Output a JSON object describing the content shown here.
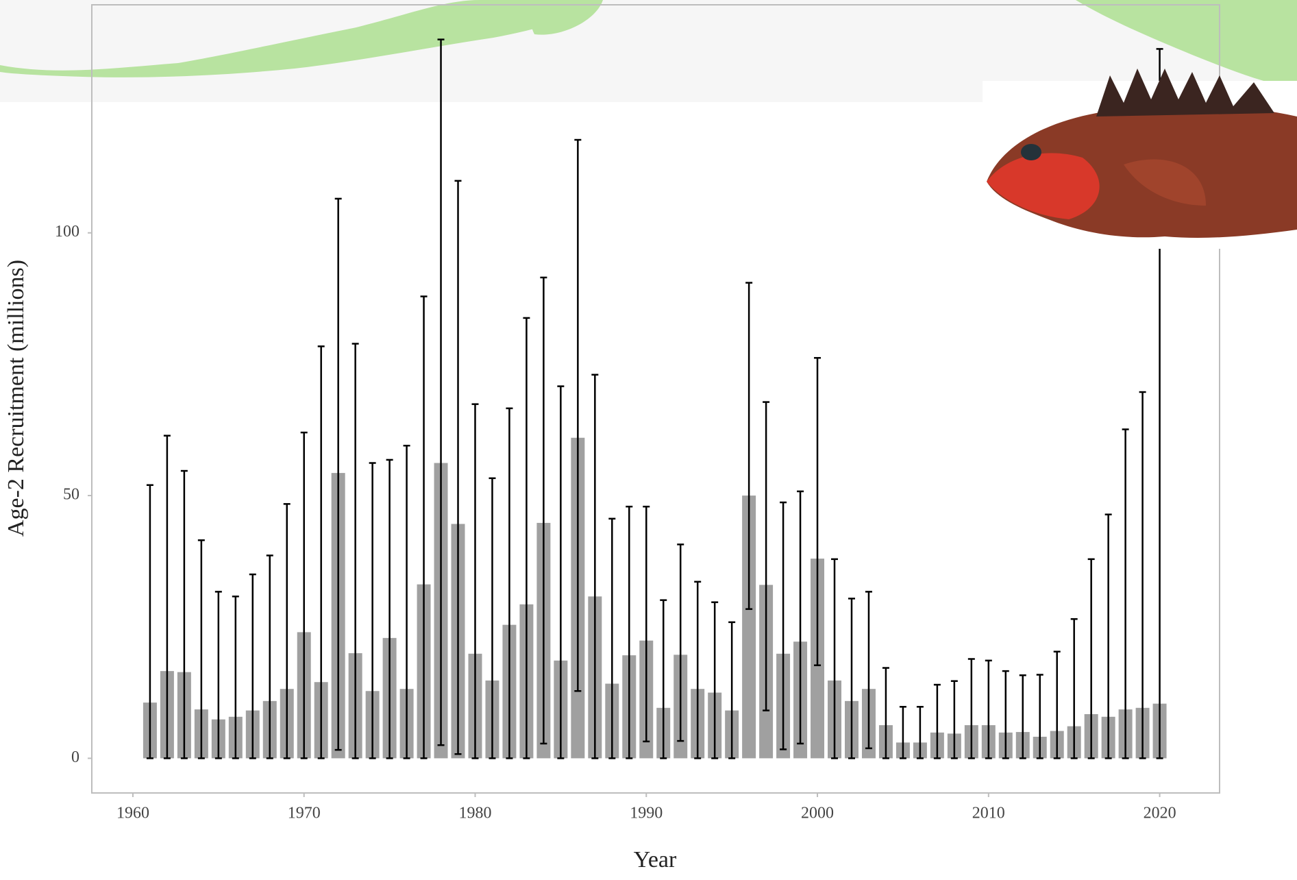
{
  "chart_data": {
    "type": "bar",
    "x_label": "Year",
    "y_label": "Age-2 Recruitment (millions)",
    "x": [
      1961,
      1962,
      1963,
      1964,
      1965,
      1966,
      1967,
      1968,
      1969,
      1970,
      1971,
      1972,
      1973,
      1974,
      1975,
      1976,
      1977,
      1978,
      1979,
      1980,
      1981,
      1982,
      1983,
      1984,
      1985,
      1986,
      1987,
      1988,
      1989,
      1990,
      1991,
      1992,
      1993,
      1994,
      1995,
      1996,
      1997,
      1998,
      1999,
      2000,
      2001,
      2002,
      2003,
      2004,
      2005,
      2006,
      2007,
      2008,
      2009,
      2010,
      2011,
      2012,
      2013,
      2014,
      2015,
      2016,
      2017,
      2018,
      2019,
      2020
    ],
    "values": [
      10.6,
      16.6,
      16.4,
      9.3,
      7.4,
      7.9,
      9.1,
      10.9,
      13.2,
      24,
      14.5,
      54.3,
      20,
      12.8,
      22.9,
      13.2,
      33.1,
      56.2,
      44.6,
      19.9,
      14.8,
      25.4,
      29.3,
      44.8,
      18.6,
      61,
      30.8,
      14.2,
      19.6,
      22.4,
      9.6,
      19.7,
      13.2,
      12.5,
      9.1,
      50,
      33,
      19.9,
      22.2,
      38,
      14.8,
      10.9,
      13.2,
      6.3,
      3,
      3,
      4.9,
      4.7,
      6.3,
      6.3,
      4.9,
      5,
      4.1,
      5.2,
      6.1,
      8.4,
      7.9,
      9.3,
      9.6,
      10.4
    ],
    "lower": [
      0,
      0,
      0,
      0,
      0,
      0,
      0,
      0,
      0,
      0,
      0,
      1.6,
      0,
      0,
      0,
      0,
      0,
      2.5,
      0.8,
      0,
      0,
      0,
      0,
      2.8,
      0,
      12.8,
      0,
      0,
      0,
      3.2,
      0,
      3.3,
      0,
      0,
      0,
      28.4,
      9.1,
      1.7,
      2.8,
      17.7,
      0,
      0,
      1.9,
      0,
      0,
      0,
      0,
      0,
      0,
      0,
      0,
      0,
      0,
      0,
      0,
      0,
      0,
      0,
      0,
      0
    ],
    "upper": [
      52,
      61.4,
      54.7,
      41.5,
      31.7,
      30.8,
      35,
      38.6,
      48.4,
      62,
      78.4,
      106.5,
      78.9,
      56.2,
      56.8,
      59.5,
      87.9,
      136.8,
      109.9,
      67.4,
      53.3,
      66.6,
      83.8,
      91.5,
      70.8,
      117.7,
      73,
      45.6,
      47.9,
      47.9,
      30.1,
      40.7,
      33.6,
      29.7,
      25.9,
      90.5,
      67.8,
      48.7,
      50.8,
      76.2,
      37.9,
      30.4,
      31.7,
      17.2,
      9.8,
      9.8,
      14,
      14.7,
      18.9,
      18.6,
      16.6,
      15.8,
      15.9,
      20.3,
      26.5,
      37.9,
      46.4,
      62.6,
      69.7,
      135
    ],
    "color": "#a0a0a0",
    "error_color": "#000000",
    "xlim": [
      1957.6,
      2023.5
    ],
    "ylim": [
      -6.6,
      143.4
    ],
    "xticks": [
      1960,
      1970,
      1980,
      1990,
      2000,
      2010,
      2020
    ],
    "yticks": [
      0,
      50,
      100
    ]
  }
}
